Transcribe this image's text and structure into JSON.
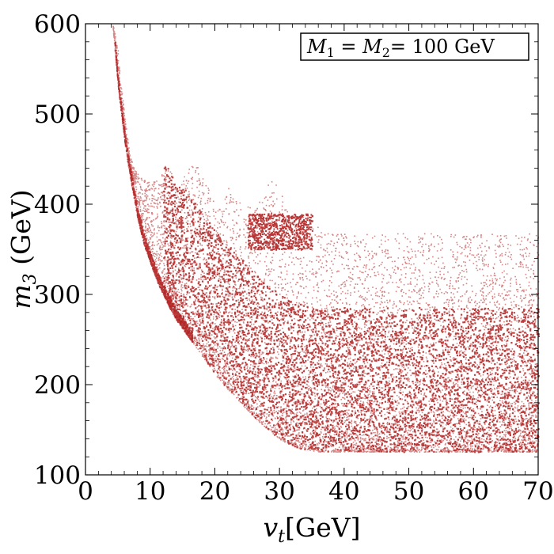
{
  "chart_data": {
    "type": "scatter",
    "title": "",
    "xlabel": "v_t[GeV]",
    "xlabel_main": "v",
    "xlabel_sub": "t",
    "xlabel_unit": "[GeV]",
    "ylabel": "m_3 (GeV)",
    "ylabel_main": "m",
    "ylabel_sub": "3",
    "ylabel_unit": " (GeV)",
    "xlim": [
      0,
      70
    ],
    "ylim": [
      100,
      600
    ],
    "x_ticks": [
      0,
      10,
      20,
      30,
      40,
      50,
      60,
      70
    ],
    "y_ticks": [
      100,
      200,
      300,
      400,
      500,
      600
    ],
    "grid": false,
    "legend_placement": "top-right",
    "annotation": {
      "m1": "M",
      "m1_sub": "1",
      "eq1": " = ",
      "m2": "M",
      "m2_sub": "2",
      "eq2": "= 100 GeV"
    },
    "marker_color": "#b22222",
    "series": [
      {
        "x": [
          4.2,
          5,
          5.5,
          6,
          6.5,
          7,
          7.5,
          8,
          8.5,
          9,
          10,
          11,
          12,
          13,
          14,
          15,
          16,
          17,
          18,
          19,
          20,
          21,
          22,
          23,
          24,
          25,
          26,
          27,
          28,
          29,
          30,
          31,
          32,
          33,
          34,
          35,
          36,
          37,
          38,
          39,
          40,
          42,
          45,
          48,
          50,
          55,
          60,
          65,
          70
        ],
        "y_lower": [
          595,
          530,
          500,
          470,
          445,
          425,
          405,
          385,
          370,
          355,
          335,
          315,
          300,
          285,
          272,
          262,
          252,
          242,
          232,
          222,
          212,
          203,
          195,
          188,
          180,
          172,
          165,
          158,
          152,
          146,
          140,
          136,
          133,
          130,
          128,
          127,
          126,
          126,
          126,
          126,
          126,
          126,
          126,
          126,
          126,
          126,
          126,
          126,
          126
        ],
        "y_upper": [
          600,
          570,
          530,
          500,
          470,
          450,
          440,
          435,
          432,
          430,
          425,
          430,
          445,
          440,
          420,
          430,
          440,
          450,
          430,
          420,
          400,
          395,
          420,
          410,
          400,
          398,
          395,
          405,
          420,
          430,
          415,
          400,
          395,
          390,
          385,
          378,
          375,
          370,
          368,
          368,
          368,
          368,
          368,
          368,
          368,
          368,
          368,
          368,
          368
        ]
      }
    ]
  }
}
